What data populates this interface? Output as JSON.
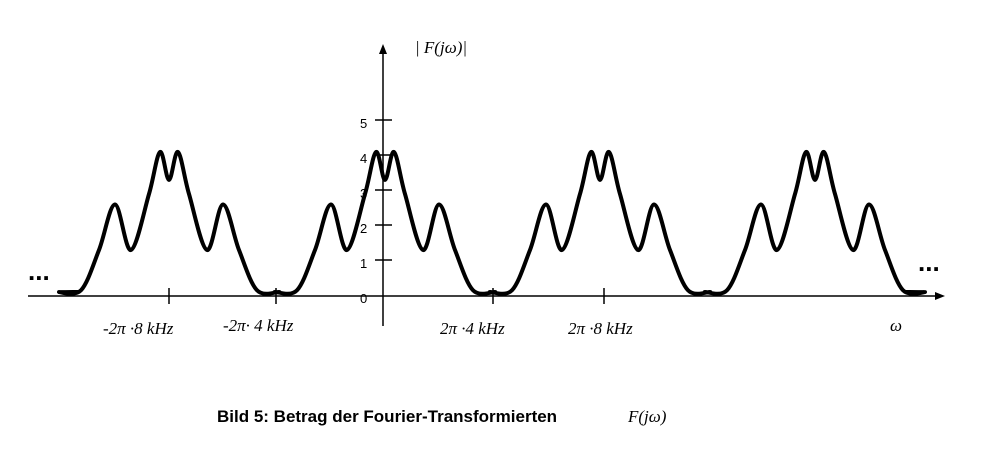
{
  "figure": {
    "y_label": "| F(jω)|",
    "y_ticks": [
      "0",
      "1",
      "2",
      "3",
      "4",
      "5"
    ],
    "x_labels": [
      "-2π ·8 kHz",
      "-2π· 4 kHz",
      "2π ·4 kHz",
      "2π ·8 kHz"
    ],
    "x_axis_label": "ω",
    "ellipsis_left": "...",
    "ellipsis_right": "...",
    "caption": "Bild 5: Betrag der Fourier-Transformierten",
    "caption_formula": "F(jω)"
  }
}
